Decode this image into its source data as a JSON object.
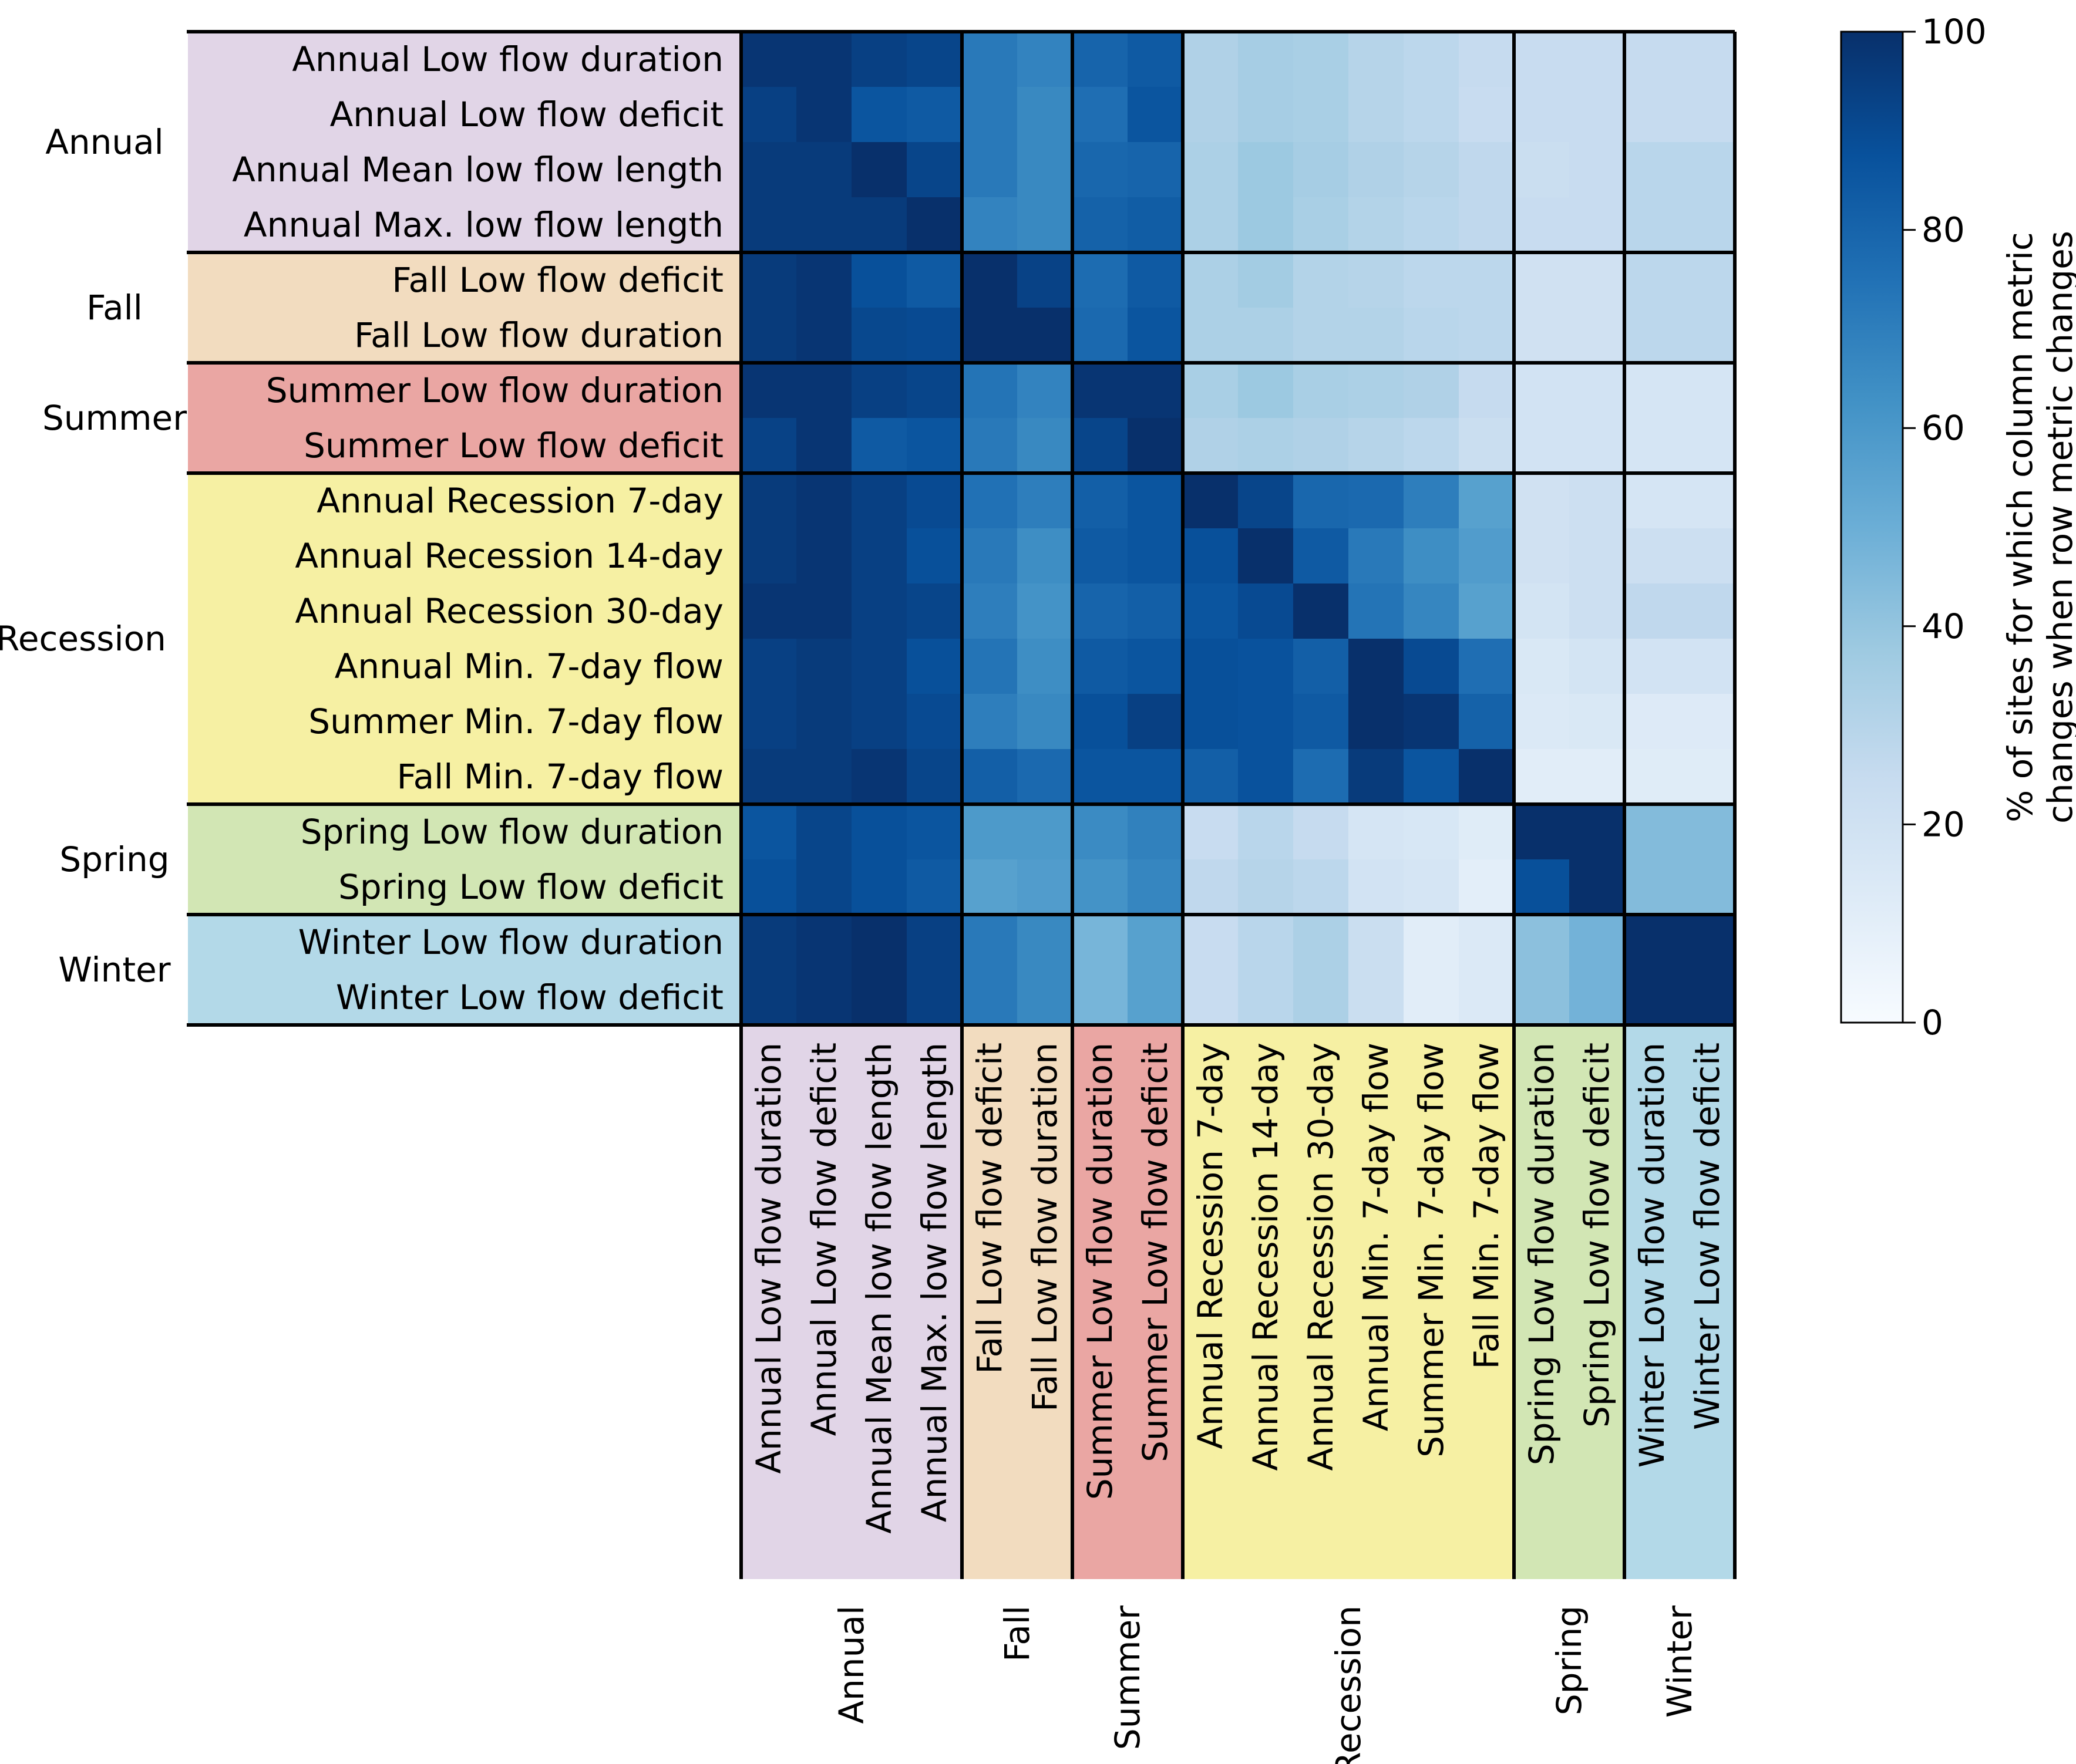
{
  "chart_data": {
    "type": "heatmap",
    "title": "",
    "rows": [
      "Annual Low flow duration",
      "Annual Low flow deficit",
      "Annual Mean low flow length",
      "Annual Max. low flow length",
      "Fall Low flow deficit",
      "Fall Low flow duration",
      "Summer Low flow duration",
      "Summer Low flow deficit",
      "Annual Recession 7-day",
      "Annual Recession 14-day",
      "Annual Recession 30-day",
      "Annual Min. 7-day flow",
      "Summer Min. 7-day flow",
      "Fall Min. 7-day flow",
      "Spring Low flow duration",
      "Spring Low flow deficit",
      "Winter Low flow duration",
      "Winter Low flow deficit"
    ],
    "columns": [
      "Annual Low flow duration",
      "Annual Low flow deficit",
      "Annual Mean low flow length",
      "Annual Max. low flow length",
      "Fall Low flow deficit",
      "Fall Low flow duration",
      "Summer Low flow duration",
      "Summer Low flow deficit",
      "Annual Recession 7-day",
      "Annual Recession 14-day",
      "Annual Recession 30-day",
      "Annual Min. 7-day flow",
      "Summer Min. 7-day flow",
      "Fall Min. 7-day flow",
      "Spring Low flow duration",
      "Spring Low flow deficit",
      "Winter Low flow duration",
      "Winter Low flow deficit"
    ],
    "groups": [
      {
        "name": "Annual",
        "start": 0,
        "count": 4,
        "color": "#e1d5e7"
      },
      {
        "name": "Fall",
        "start": 4,
        "count": 2,
        "color": "#f2dcbf"
      },
      {
        "name": "Summer",
        "start": 6,
        "count": 2,
        "color": "#eaa6a3"
      },
      {
        "name": "Recession",
        "start": 8,
        "count": 6,
        "color": "#f6f0a3"
      },
      {
        "name": "Spring",
        "start": 14,
        "count": 2,
        "color": "#d2e6b4"
      },
      {
        "name": "Winter",
        "start": 16,
        "count": 2,
        "color": "#b3d9e8"
      }
    ],
    "values": [
      [
        98,
        98,
        94,
        92,
        72,
        68,
        80,
        84,
        32,
        35,
        34,
        30,
        28,
        25,
        24,
        24,
        25,
        25
      ],
      [
        94,
        98,
        86,
        84,
        72,
        66,
        76,
        86,
        32,
        35,
        34,
        30,
        28,
        24,
        24,
        24,
        25,
        25
      ],
      [
        96,
        96,
        100,
        92,
        72,
        66,
        79,
        80,
        33,
        38,
        35,
        32,
        30,
        27,
        23,
        24,
        29,
        29
      ],
      [
        96,
        96,
        96,
        100,
        68,
        66,
        81,
        83,
        33,
        38,
        34,
        31,
        29,
        27,
        24,
        24,
        29,
        29
      ],
      [
        96,
        98,
        88,
        84,
        100,
        93,
        77,
        84,
        33,
        36,
        31,
        30,
        28,
        28,
        20,
        20,
        28,
        28
      ],
      [
        96,
        98,
        91,
        90,
        100,
        100,
        78,
        86,
        33,
        33,
        31,
        31,
        29,
        28,
        20,
        20,
        28,
        28
      ],
      [
        98,
        98,
        94,
        92,
        74,
        68,
        98,
        98,
        34,
        38,
        34,
        33,
        32,
        25,
        19,
        19,
        17,
        17
      ],
      [
        93,
        98,
        84,
        86,
        72,
        66,
        92,
        100,
        32,
        33,
        32,
        30,
        28,
        23,
        19,
        19,
        17,
        17
      ],
      [
        96,
        98,
        94,
        90,
        75,
        70,
        82,
        86,
        100,
        92,
        79,
        78,
        70,
        56,
        20,
        22,
        17,
        17
      ],
      [
        96,
        98,
        94,
        88,
        72,
        64,
        84,
        86,
        88,
        100,
        84,
        72,
        64,
        58,
        20,
        22,
        22,
        22
      ],
      [
        98,
        98,
        94,
        92,
        70,
        62,
        80,
        82,
        86,
        90,
        100,
        74,
        67,
        56,
        18,
        22,
        27,
        27
      ],
      [
        94,
        96,
        94,
        88,
        74,
        64,
        84,
        86,
        88,
        87,
        82,
        100,
        90,
        76,
        15,
        18,
        19,
        19
      ],
      [
        94,
        96,
        94,
        90,
        70,
        66,
        88,
        94,
        88,
        87,
        84,
        100,
        98,
        81,
        14,
        15,
        13,
        13
      ],
      [
        96,
        96,
        98,
        92,
        82,
        78,
        86,
        86,
        82,
        87,
        77,
        96,
        86,
        100,
        11,
        11,
        12,
        12
      ],
      [
        86,
        92,
        88,
        86,
        59,
        59,
        65,
        69,
        24,
        29,
        25,
        17,
        16,
        12,
        100,
        100,
        44,
        44
      ],
      [
        88,
        92,
        88,
        84,
        56,
        58,
        62,
        67,
        27,
        30,
        28,
        19,
        17,
        10,
        88,
        100,
        44,
        44
      ],
      [
        96,
        98,
        100,
        94,
        72,
        66,
        47,
        56,
        24,
        29,
        33,
        23,
        11,
        14,
        42,
        48,
        100,
        100
      ],
      [
        96,
        98,
        100,
        94,
        72,
        66,
        47,
        56,
        24,
        29,
        33,
        23,
        11,
        14,
        42,
        48,
        100,
        100
      ]
    ],
    "colorbar": {
      "label_lines": [
        "% of sites for which column metric",
        "changes when row metric changes"
      ],
      "min": 0,
      "max": 100,
      "ticks": [
        0,
        20,
        40,
        60,
        80,
        100
      ],
      "colormap": "Blues",
      "colors": [
        "#f7fbff",
        "#deebf7",
        "#c6dbef",
        "#9ecae1",
        "#6baed6",
        "#4292c6",
        "#2171b5",
        "#08519c",
        "#08306b"
      ]
    }
  }
}
